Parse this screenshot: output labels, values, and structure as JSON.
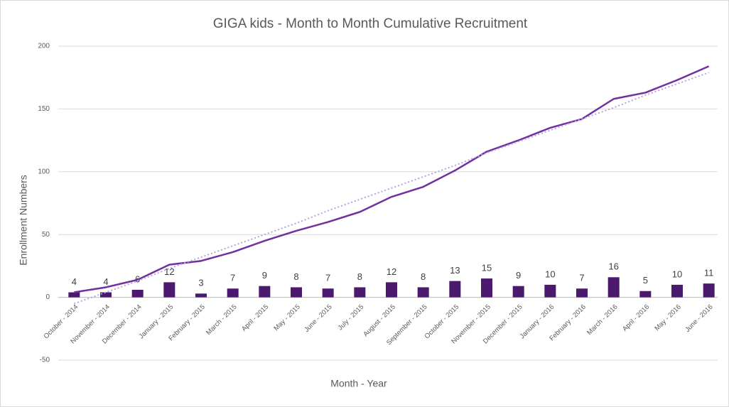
{
  "chart_data": {
    "type": "bar_line",
    "title": "GIGA kids - Month to Month Cumulative Recruitment",
    "xlabel": "Month - Year",
    "ylabel": "Enrollment Numbers",
    "categories": [
      "October - 2014",
      "November - 2014",
      "December - 2014",
      "January - 2015",
      "February - 2015",
      "March - 2015",
      "April - 2015",
      "May - 2015",
      "June - 2015",
      "July - 2015",
      "August - 2015",
      "September - 2015",
      "October - 2015",
      "November - 2015",
      "December - 2015",
      "January - 2016",
      "February - 2016",
      "March - 2016",
      "April - 2016",
      "May - 2016",
      "June - 2016"
    ],
    "series": [
      {
        "type": "bar",
        "color": "#4b1a6e",
        "values": [
          4,
          4,
          6,
          12,
          3,
          7,
          9,
          8,
          7,
          8,
          12,
          8,
          13,
          15,
          9,
          10,
          7,
          16,
          5,
          10,
          11
        ]
      },
      {
        "type": "line",
        "color": "#7030a0",
        "values": [
          4,
          8,
          14,
          26,
          29,
          36,
          45,
          53,
          60,
          68,
          80,
          88,
          101,
          116,
          125,
          135,
          142,
          158,
          163,
          173,
          184
        ]
      },
      {
        "type": "trend",
        "color": "#b9a0e0",
        "values": [
          -5,
          4,
          13,
          23,
          32,
          41,
          50,
          59,
          69,
          78,
          87,
          96,
          105,
          115,
          124,
          133,
          142,
          151,
          161,
          170,
          179
        ]
      }
    ],
    "ylim": [
      -50,
      200
    ],
    "yticks": [
      -50,
      0,
      50,
      100,
      150,
      200
    ],
    "grid": true
  }
}
